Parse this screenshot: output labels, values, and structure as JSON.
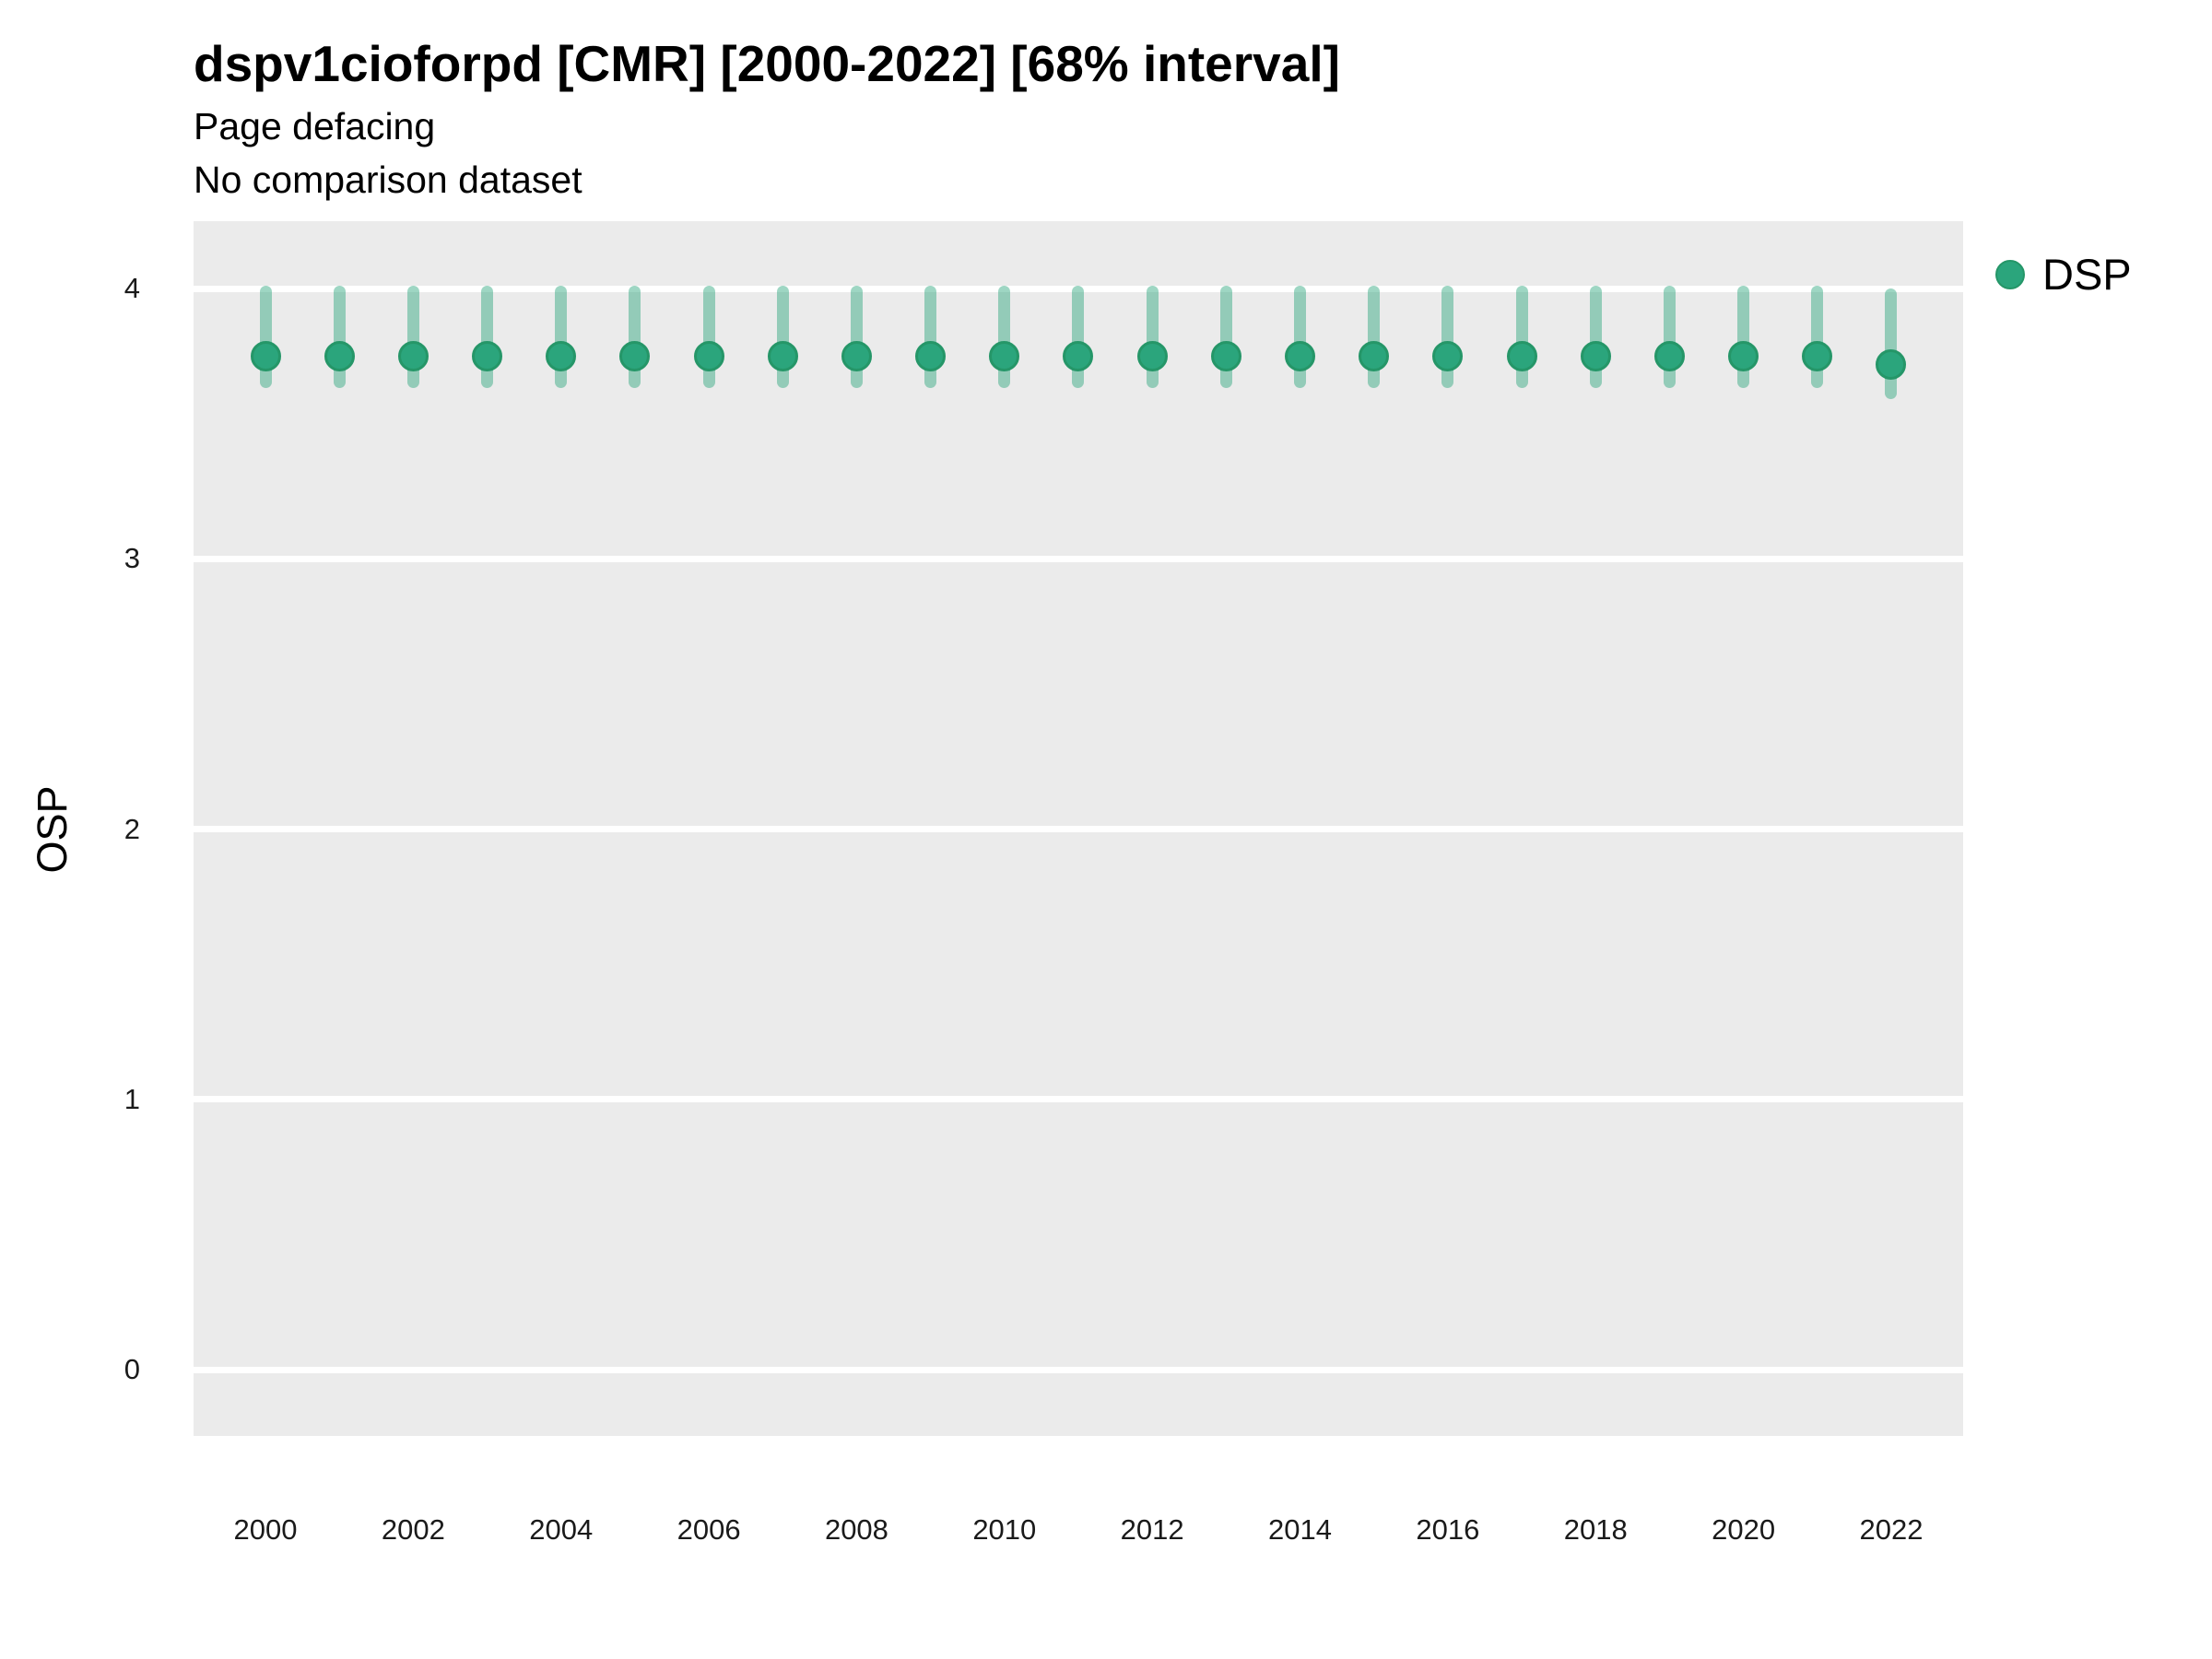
{
  "header": {
    "title": "dspv1cioforpd [CMR] [2000-2022] [68% interval]",
    "subtitle": "Page defacing",
    "note": "No comparison dataset"
  },
  "legend": {
    "position": "right",
    "items": [
      {
        "label": "DSP",
        "marker": "circle-icon"
      }
    ]
  },
  "colors": {
    "point": "#2ba57c",
    "point_border": "#259668",
    "interval": "rgba(43,165,124,0.46)",
    "panel_bg": "#ebebeb",
    "gridline": "#ffffff",
    "tick_text": "#1a1a1a"
  },
  "chart_data": {
    "type": "scatter",
    "subtype": "pointrange",
    "title": "dspv1cioforpd [CMR] [2000-2022] [68% interval]",
    "subtitle": "Page defacing",
    "note": "No comparison dataset",
    "xlabel": "",
    "ylabel": "OSP",
    "interval": "68%",
    "legend_position": "right",
    "grid": "horizontal major gridlines only, white on gray panel",
    "x": [
      2000,
      2001,
      2002,
      2003,
      2004,
      2005,
      2006,
      2007,
      2008,
      2009,
      2010,
      2011,
      2012,
      2013,
      2014,
      2015,
      2016,
      2017,
      2018,
      2019,
      2020,
      2021,
      2022
    ],
    "series": [
      {
        "name": "DSP",
        "values": [
          3.75,
          3.75,
          3.75,
          3.75,
          3.75,
          3.75,
          3.75,
          3.75,
          3.75,
          3.75,
          3.75,
          3.75,
          3.75,
          3.75,
          3.75,
          3.75,
          3.75,
          3.75,
          3.75,
          3.75,
          3.75,
          3.75,
          3.72
        ],
        "lower": [
          3.63,
          3.63,
          3.63,
          3.63,
          3.63,
          3.63,
          3.63,
          3.63,
          3.63,
          3.63,
          3.63,
          3.63,
          3.63,
          3.63,
          3.63,
          3.63,
          3.63,
          3.63,
          3.63,
          3.63,
          3.63,
          3.63,
          3.59
        ],
        "upper": [
          4.01,
          4.01,
          4.01,
          4.01,
          4.01,
          4.01,
          4.01,
          4.01,
          4.01,
          4.01,
          4.01,
          4.01,
          4.01,
          4.01,
          4.01,
          4.01,
          4.01,
          4.01,
          4.01,
          4.01,
          4.01,
          4.01,
          4.0
        ]
      }
    ],
    "xticks": [
      2000,
      2002,
      2004,
      2006,
      2008,
      2010,
      2012,
      2014,
      2016,
      2018,
      2020,
      2022
    ],
    "yticks": [
      0,
      1,
      2,
      3,
      4
    ],
    "xlim": [
      1999.03,
      2022.97
    ],
    "ylim": [
      -0.25,
      4.25
    ]
  }
}
